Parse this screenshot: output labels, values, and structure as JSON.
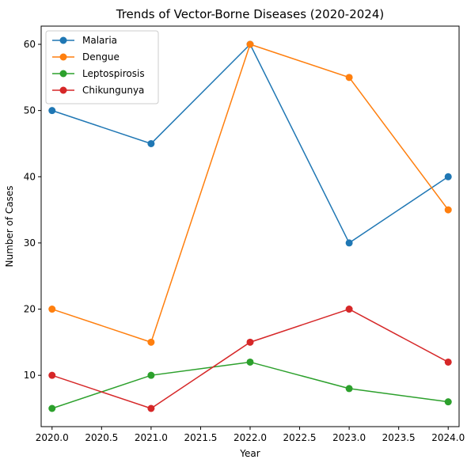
{
  "chart_data": {
    "type": "line",
    "title": "Trends of Vector-Borne Diseases (2020-2024)",
    "xlabel": "Year",
    "ylabel": "Number of Cases",
    "x": [
      2020,
      2021,
      2022,
      2023,
      2024
    ],
    "xlim": [
      2019.89,
      2024.11
    ],
    "ylim": [
      2.25,
      62.75
    ],
    "xticks": [
      2020.0,
      2020.5,
      2021.0,
      2021.5,
      2022.0,
      2022.5,
      2023.0,
      2023.5,
      2024.0
    ],
    "xtick_labels": [
      "2020.0",
      "2020.5",
      "2021.0",
      "2021.5",
      "2022.0",
      "2022.5",
      "2023.0",
      "2023.5",
      "2024.0"
    ],
    "yticks": [
      10,
      20,
      30,
      40,
      50,
      60
    ],
    "ytick_labels": [
      "10",
      "20",
      "30",
      "40",
      "50",
      "60"
    ],
    "grid": false,
    "legend_position": "top-left",
    "series": [
      {
        "name": "Malaria",
        "color": "#1f77b4",
        "values": [
          50,
          45,
          60,
          30,
          40
        ]
      },
      {
        "name": "Dengue",
        "color": "#ff7f0e",
        "values": [
          20,
          15,
          60,
          55,
          35
        ]
      },
      {
        "name": "Leptospirosis",
        "color": "#2ca02c",
        "values": [
          5,
          10,
          12,
          8,
          6
        ]
      },
      {
        "name": "Chikungunya",
        "color": "#d62728",
        "values": [
          10,
          5,
          15,
          20,
          12
        ]
      }
    ]
  }
}
